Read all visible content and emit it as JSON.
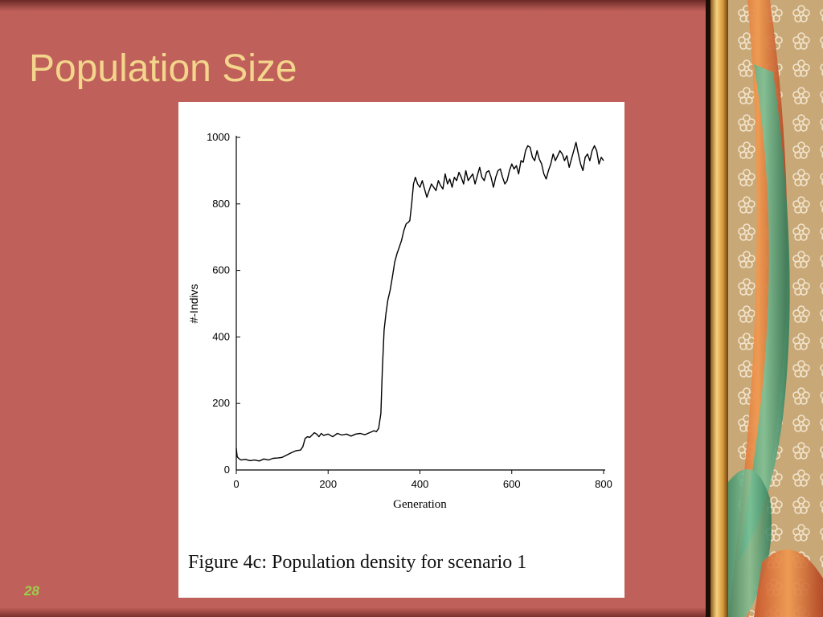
{
  "slide": {
    "title": "Population Size",
    "page_number": "28",
    "caption": "Figure 4c: Population density for scenario 1"
  },
  "colors": {
    "background": "#c0605a",
    "title": "#f3d58c",
    "page_number": "#9bd24a",
    "line": "#000000"
  },
  "chart_data": {
    "type": "line",
    "xlabel": "Generation",
    "ylabel": "#-Indivs",
    "xlim": [
      0,
      800
    ],
    "ylim": [
      0,
      1000
    ],
    "xticks": [
      0,
      200,
      400,
      600,
      800
    ],
    "yticks": [
      0,
      200,
      400,
      600,
      800,
      1000
    ],
    "grid": false,
    "legend": "none",
    "series": [
      {
        "name": "",
        "x": [
          0,
          2,
          5,
          10,
          20,
          30,
          40,
          50,
          60,
          70,
          80,
          90,
          100,
          110,
          120,
          130,
          140,
          145,
          150,
          155,
          160,
          165,
          170,
          175,
          180,
          185,
          190,
          200,
          210,
          220,
          230,
          240,
          250,
          260,
          270,
          280,
          290,
          300,
          305,
          310,
          315,
          318,
          322,
          326,
          330,
          335,
          340,
          345,
          350,
          355,
          360,
          365,
          370,
          375,
          378,
          382,
          386,
          390,
          395,
          400,
          405,
          410,
          415,
          420,
          425,
          430,
          435,
          440,
          445,
          450,
          455,
          460,
          465,
          470,
          475,
          480,
          485,
          490,
          495,
          500,
          505,
          510,
          515,
          520,
          525,
          530,
          535,
          540,
          545,
          550,
          555,
          560,
          565,
          570,
          575,
          580,
          585,
          590,
          595,
          600,
          605,
          610,
          615,
          620,
          625,
          630,
          635,
          640,
          645,
          650,
          655,
          660,
          665,
          670,
          675,
          680,
          685,
          690,
          695,
          700,
          705,
          710,
          715,
          720,
          725,
          730,
          735,
          740,
          745,
          750,
          755,
          760,
          765,
          770,
          775,
          780,
          785,
          790,
          795,
          800
        ],
        "values": [
          65,
          40,
          35,
          30,
          32,
          28,
          30,
          27,
          33,
          30,
          35,
          36,
          38,
          45,
          52,
          58,
          60,
          70,
          95,
          100,
          98,
          105,
          112,
          108,
          100,
          110,
          104,
          108,
          100,
          110,
          105,
          108,
          102,
          108,
          110,
          106,
          112,
          118,
          115,
          125,
          170,
          300,
          420,
          470,
          510,
          540,
          580,
          625,
          650,
          670,
          690,
          720,
          740,
          745,
          750,
          800,
          860,
          880,
          860,
          850,
          870,
          845,
          820,
          840,
          860,
          850,
          840,
          870,
          855,
          845,
          890,
          860,
          875,
          850,
          880,
          870,
          895,
          880,
          860,
          900,
          870,
          880,
          890,
          860,
          885,
          910,
          880,
          870,
          895,
          900,
          880,
          850,
          880,
          900,
          905,
          880,
          860,
          870,
          900,
          920,
          905,
          915,
          890,
          930,
          925,
          960,
          975,
          970,
          940,
          930,
          960,
          935,
          920,
          890,
          875,
          900,
          920,
          950,
          930,
          945,
          960,
          950,
          930,
          945,
          910,
          935,
          960,
          985,
          950,
          920,
          900,
          940,
          950,
          930,
          960,
          975,
          960,
          920,
          940,
          930
        ]
      }
    ]
  }
}
